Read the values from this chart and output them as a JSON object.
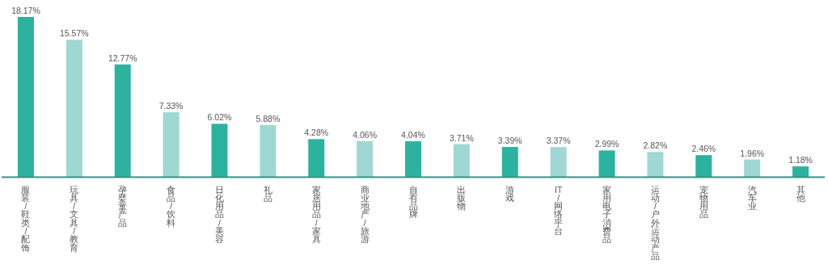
{
  "chart_data": {
    "type": "bar",
    "categories": [
      "服装/鞋类/配饰",
      "玩具/文具/教育",
      "孕婴童产品",
      "食品/饮料",
      "日化用品/美容",
      "礼品",
      "家居用品/家具",
      "商业地产/旅游",
      "自有品牌",
      "出版物",
      "游戏",
      "IT/网络平台",
      "家用电子消费品",
      "运动/户外运动产品",
      "宠物用品",
      "汽车业",
      "其他"
    ],
    "values": [
      18.17,
      15.57,
      12.77,
      7.33,
      6.02,
      5.88,
      4.28,
      4.06,
      4.04,
      3.71,
      3.39,
      3.37,
      2.99,
      2.82,
      2.46,
      1.96,
      1.18
    ],
    "value_labels": [
      "18.17%",
      "15.57%",
      "12.77%",
      "7.33%",
      "6.02%",
      "5.88%",
      "4.28%",
      "4.06%",
      "4.04%",
      "3.71%",
      "3.39%",
      "3.37%",
      "2.99%",
      "2.82%",
      "2.46%",
      "1.96%",
      "1.18%"
    ],
    "colors": [
      "#2bb3a0",
      "#9fd8d2",
      "#2bb3a0",
      "#9fd8d2",
      "#2bb3a0",
      "#9fd8d2",
      "#2bb3a0",
      "#9fd8d2",
      "#2bb3a0",
      "#9fd8d2",
      "#2bb3a0",
      "#9fd8d2",
      "#2bb3a0",
      "#9fd8d2",
      "#2bb3a0",
      "#9fd8d2",
      "#2bb3a0"
    ],
    "data_labels": false
  }
}
